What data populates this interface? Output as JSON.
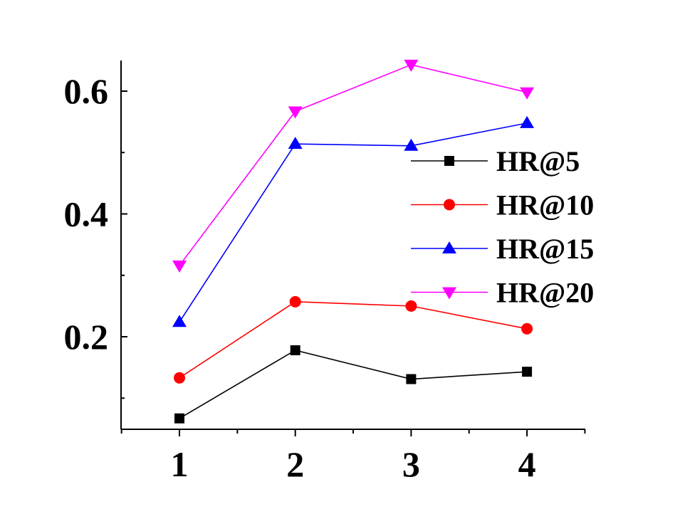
{
  "chart_data": {
    "type": "line",
    "title": "",
    "xlabel": "",
    "ylabel": "",
    "x": [
      1,
      2,
      3,
      4
    ],
    "x_ticks": [
      "1",
      "2",
      "3",
      "4"
    ],
    "y_ticks": [
      "0.2",
      "0.4",
      "0.6"
    ],
    "xlim": [
      0.5,
      4.5
    ],
    "ylim": [
      0.05,
      0.65
    ],
    "grid": false,
    "legend_position": "right",
    "series": [
      {
        "name": "HR@5",
        "values": [
          0.067,
          0.178,
          0.131,
          0.143
        ],
        "color": "#000000",
        "marker": "square"
      },
      {
        "name": "HR@10",
        "values": [
          0.133,
          0.257,
          0.25,
          0.213
        ],
        "color": "#ff0000",
        "marker": "circle"
      },
      {
        "name": "HR@15",
        "values": [
          0.224,
          0.514,
          0.511,
          0.548
        ],
        "color": "#0000ff",
        "marker": "triangle-up"
      },
      {
        "name": "HR@20",
        "values": [
          0.316,
          0.567,
          0.643,
          0.598
        ],
        "color": "#ff00ff",
        "marker": "triangle-down"
      }
    ]
  }
}
